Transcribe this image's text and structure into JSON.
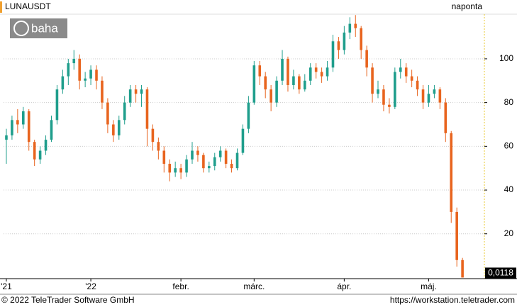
{
  "chart_data": {
    "type": "candlestick",
    "title": "LUNAUSDT",
    "interval": "naponta",
    "logo": "baha",
    "categories": [
      "'21",
      null,
      null,
      null,
      null,
      null,
      null,
      null,
      null,
      null,
      null,
      null,
      null,
      null,
      null,
      "'22",
      null,
      null,
      null,
      null,
      null,
      null,
      null,
      null,
      null,
      null,
      null,
      null,
      null,
      null,
      null,
      "febr.",
      null,
      null,
      null,
      null,
      null,
      null,
      null,
      null,
      null,
      null,
      null,
      null,
      "márc.",
      null,
      null,
      null,
      null,
      null,
      null,
      null,
      null,
      null,
      null,
      null,
      null,
      null,
      null,
      null,
      "ápr.",
      null,
      null,
      null,
      null,
      null,
      null,
      null,
      null,
      null,
      null,
      null,
      null,
      null,
      null,
      "máj.",
      null,
      null,
      null,
      null,
      null,
      null
    ],
    "open": [
      63,
      65,
      72,
      70,
      76,
      62,
      54,
      58,
      63,
      72,
      86,
      92,
      98,
      100,
      90,
      91,
      95,
      90,
      80,
      70,
      65,
      72,
      80,
      86,
      84,
      86,
      68,
      62,
      58,
      52,
      48,
      50,
      48,
      54,
      58,
      56,
      50,
      51,
      55,
      58,
      52,
      50,
      57,
      68,
      80,
      97,
      92,
      86,
      80,
      90,
      100,
      88,
      92,
      86,
      90,
      96,
      94,
      92,
      96,
      108,
      104,
      112,
      116,
      114,
      104,
      96,
      84,
      86,
      79,
      78,
      94,
      96,
      92,
      90,
      86,
      80,
      84,
      86,
      80,
      66,
      30,
      8
    ],
    "high": [
      68,
      74,
      77,
      78,
      77,
      63,
      60,
      65,
      74,
      88,
      95,
      100,
      104,
      102,
      94,
      97,
      97,
      92,
      82,
      72,
      74,
      83,
      88,
      88,
      88,
      87,
      70,
      64,
      60,
      54,
      53,
      52,
      56,
      62,
      60,
      57,
      53,
      57,
      60,
      59,
      54,
      59,
      70,
      83,
      99,
      99,
      94,
      88,
      92,
      104,
      101,
      95,
      93,
      93,
      98,
      98,
      96,
      99,
      111,
      110,
      115,
      119,
      120,
      115,
      106,
      98,
      90,
      88,
      82,
      96,
      100,
      98,
      95,
      92,
      88,
      88,
      88,
      87,
      82,
      67,
      32,
      9
    ],
    "low": [
      52,
      63,
      66,
      68,
      58,
      51,
      52,
      56,
      62,
      70,
      84,
      88,
      95,
      86,
      87,
      88,
      86,
      77,
      66,
      62,
      63,
      70,
      78,
      80,
      78,
      60,
      58,
      54,
      48,
      44,
      46,
      45,
      46,
      52,
      53,
      48,
      48,
      49,
      53,
      50,
      48,
      49,
      56,
      66,
      79,
      88,
      82,
      76,
      78,
      88,
      85,
      86,
      84,
      85,
      88,
      91,
      89,
      90,
      94,
      100,
      102,
      109,
      110,
      100,
      92,
      80,
      82,
      76,
      75,
      77,
      91,
      89,
      87,
      83,
      77,
      78,
      82,
      77,
      62,
      25,
      5,
      0.0118
    ],
    "close": [
      65,
      72,
      70,
      76,
      62,
      54,
      58,
      63,
      72,
      86,
      92,
      98,
      100,
      90,
      91,
      95,
      90,
      80,
      70,
      65,
      72,
      80,
      86,
      84,
      86,
      68,
      62,
      58,
      52,
      48,
      50,
      48,
      54,
      58,
      56,
      50,
      51,
      55,
      58,
      52,
      50,
      57,
      68,
      80,
      97,
      92,
      86,
      80,
      90,
      100,
      88,
      92,
      86,
      90,
      96,
      94,
      92,
      96,
      108,
      104,
      112,
      116,
      114,
      104,
      96,
      84,
      86,
      79,
      78,
      94,
      96,
      92,
      90,
      86,
      80,
      84,
      86,
      80,
      66,
      30,
      8,
      0.0118
    ],
    "last_price_label": {
      "value": 0.0118,
      "label": "0,0118"
    },
    "up_color": "#1f9e8c",
    "down_color": "#e8641e",
    "ylim": [
      -0.5,
      120.4
    ],
    "yticks": [
      20,
      40,
      60,
      80,
      100
    ],
    "grid": true
  },
  "footer": {
    "copyright": "© 2022 TeleTrader Software GmbH",
    "url": "https://workstation.teletrader.com"
  }
}
